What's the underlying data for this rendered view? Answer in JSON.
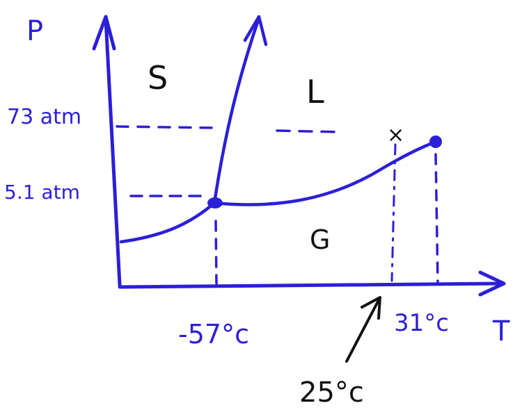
{
  "diagram": {
    "title": "",
    "axes": {
      "y_label": "P",
      "x_label": "T"
    },
    "regions": {
      "solid": "S",
      "liquid": "L",
      "gas": "G"
    },
    "pressure_labels": {
      "critical": "73 atm",
      "triple": "5.1 atm"
    },
    "temperature_labels": {
      "triple": "-57°c",
      "critical": "31°c",
      "marked": "25°c"
    },
    "point_marker": "×",
    "colors": {
      "ink": "#2b1fd8",
      "pointer": "#111111"
    }
  }
}
